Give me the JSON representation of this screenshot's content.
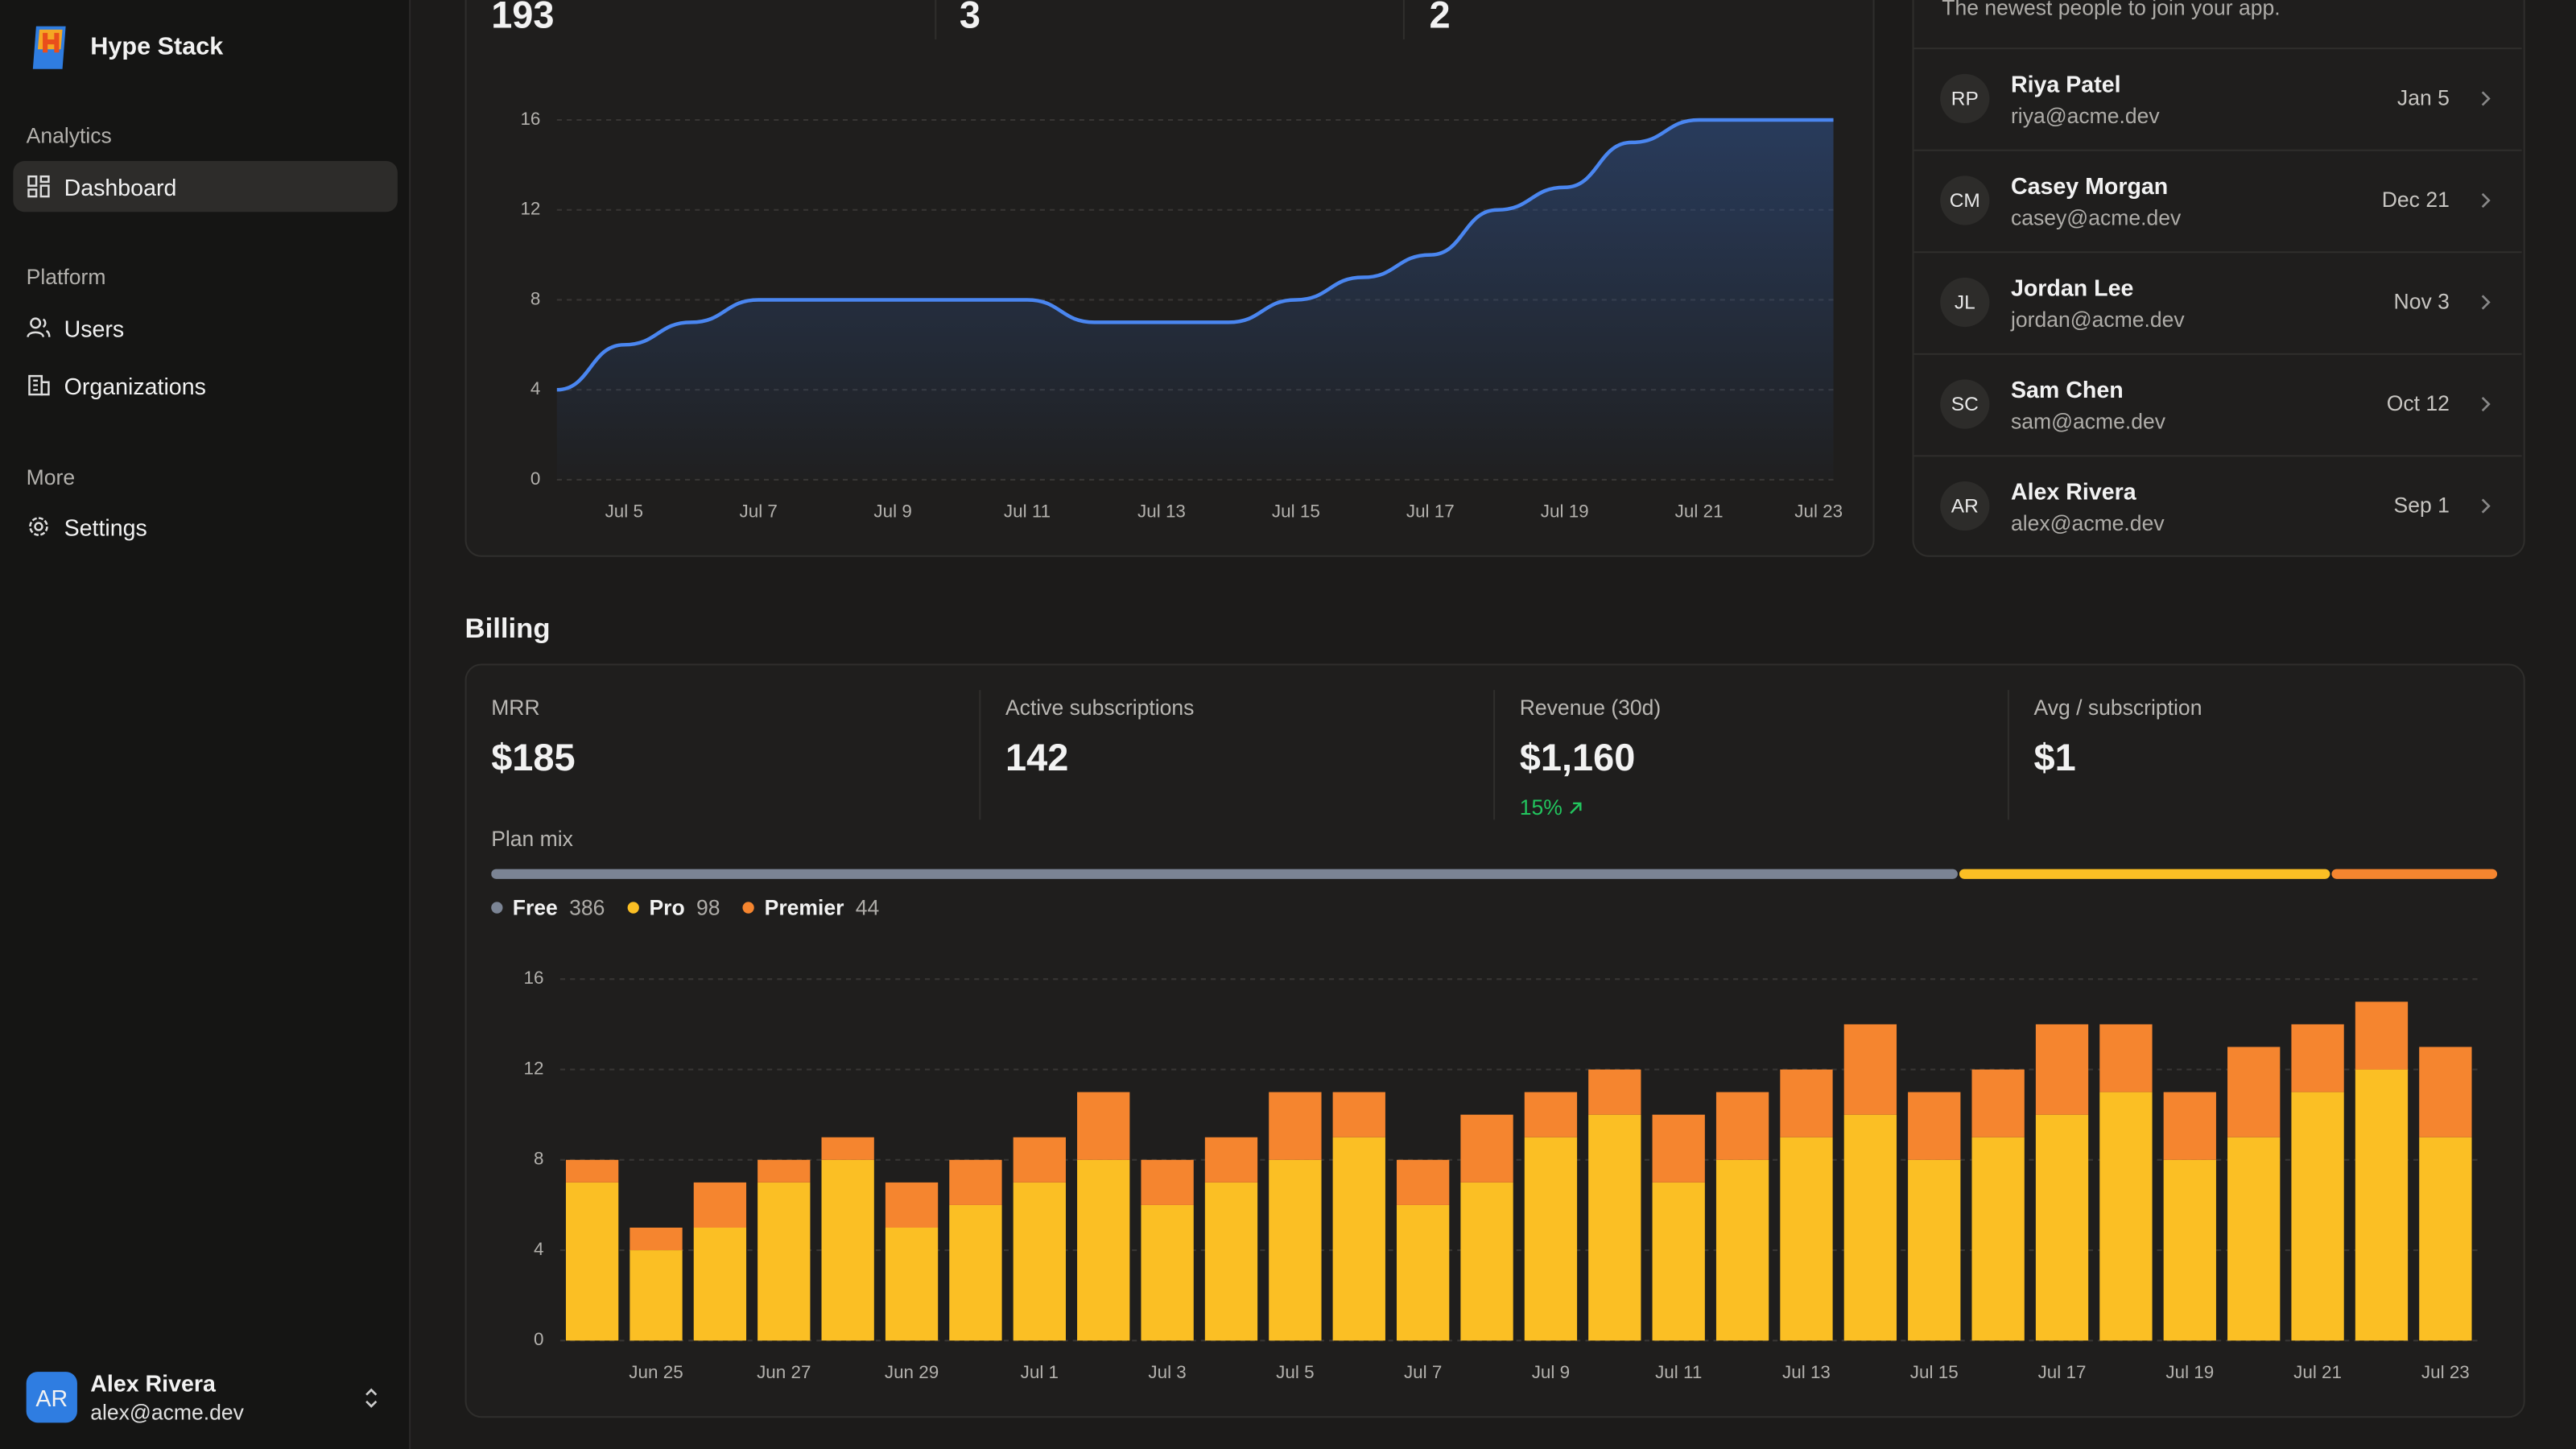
{
  "sidebar": {
    "brand": "Hype Stack",
    "sections": [
      {
        "title": "Analytics",
        "items": [
          "Dashboard"
        ]
      },
      {
        "title": "Platform",
        "items": [
          "Users",
          "Organizations"
        ]
      },
      {
        "title": "More",
        "items": [
          "Settings"
        ]
      }
    ],
    "user": {
      "initials": "AR",
      "name": "Alex Rivera",
      "email": "alex@acme.dev"
    }
  },
  "overview": {
    "stats": [
      193,
      3,
      2
    ],
    "chart": {
      "type": "line",
      "categories": [
        null,
        "Jul 5",
        null,
        "Jul 7",
        null,
        "Jul 9",
        null,
        "Jul 11",
        null,
        "Jul 13",
        null,
        "Jul 15",
        null,
        "Jul 17",
        null,
        "Jul 19",
        null,
        "Jul 21",
        null,
        "Jul 23"
      ],
      "values": [
        4,
        6,
        7,
        8,
        8,
        8,
        8,
        8,
        7,
        7,
        7,
        8,
        9,
        10,
        12,
        13,
        15,
        16,
        16,
        16
      ],
      "color": "#4a86f0",
      "ylim": [
        0,
        16
      ],
      "yticks": [
        0,
        4,
        8,
        12,
        16
      ],
      "grid": true
    }
  },
  "new_users": {
    "subtitle": "The newest people to join your app.",
    "users": [
      {
        "initials": "RP",
        "name": "Riya Patel",
        "email": "riya@acme.dev",
        "date": "Jan 5"
      },
      {
        "initials": "CM",
        "name": "Casey Morgan",
        "email": "casey@acme.dev",
        "date": "Dec 21"
      },
      {
        "initials": "JL",
        "name": "Jordan Lee",
        "email": "jordan@acme.dev",
        "date": "Nov 3"
      },
      {
        "initials": "SC",
        "name": "Sam Chen",
        "email": "sam@acme.dev",
        "date": "Oct 12"
      },
      {
        "initials": "AR",
        "name": "Alex Rivera",
        "email": "alex@acme.dev",
        "date": "Sep 1"
      }
    ]
  },
  "billing": {
    "title": "Billing",
    "stats": [
      {
        "label": "MRR",
        "value": "$185"
      },
      {
        "label": "Active subscriptions",
        "value": 142
      },
      {
        "label": "Revenue (30d)",
        "value": "$1,160",
        "change": "15%"
      },
      {
        "label": "Avg / subscription",
        "value": "$1"
      }
    ],
    "plan_mix": {
      "title": "Plan mix",
      "plans": [
        {
          "name": "Free",
          "count": 386,
          "color": "#7b8494"
        },
        {
          "name": "Pro",
          "count": 98,
          "color": "#fbbf24"
        },
        {
          "name": "Premier",
          "count": 44,
          "color": "#f5852f"
        }
      ]
    },
    "chart": {
      "type": "stacked_bar",
      "categories": [
        null,
        "Jun 25",
        null,
        "Jun 27",
        null,
        "Jun 29",
        null,
        "Jul 1",
        null,
        "Jul 3",
        null,
        "Jul 5",
        null,
        "Jul 7",
        null,
        "Jul 9",
        null,
        "Jul 11",
        null,
        "Jul 13",
        null,
        "Jul 15",
        null,
        "Jul 17",
        null,
        "Jul 19",
        null,
        "Jul 21",
        null,
        "Jul 23"
      ],
      "series": [
        {
          "color": "#fbbf24",
          "values": [
            7,
            4,
            5,
            7,
            8,
            5,
            6,
            7,
            8,
            6,
            7,
            8,
            9,
            6,
            7,
            9,
            10,
            7,
            8,
            9,
            10,
            8,
            9,
            10,
            11,
            8,
            9,
            11,
            12,
            9
          ]
        },
        {
          "color": "#f5852f",
          "values": [
            1,
            1,
            2,
            1,
            1,
            2,
            2,
            2,
            3,
            2,
            2,
            3,
            2,
            2,
            3,
            2,
            2,
            3,
            3,
            3,
            4,
            3,
            3,
            4,
            3,
            3,
            4,
            3,
            3,
            4
          ]
        }
      ],
      "ylim": [
        0,
        16
      ],
      "yticks": [
        0,
        4,
        8,
        12,
        16
      ],
      "grid": true
    }
  }
}
